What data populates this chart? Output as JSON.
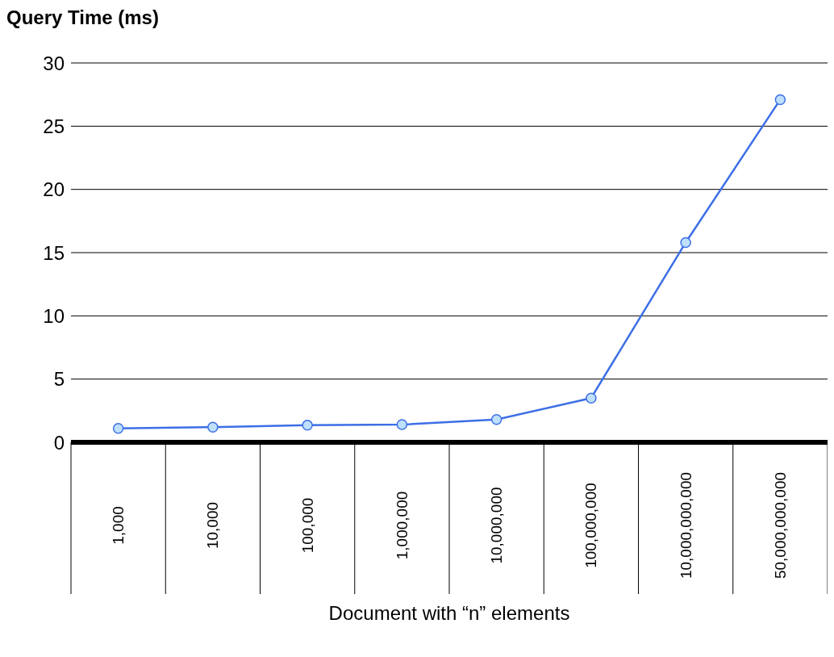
{
  "chart_data": {
    "type": "line",
    "ylabel": "Query Time (ms)",
    "xlabel": "Document with “n” elements",
    "categories": [
      "1,000",
      "10,000",
      "100,000",
      "1,000,000",
      "10,000,000",
      "100,000,000",
      "10,000,000,000",
      "50,000,000,000"
    ],
    "series": [
      {
        "color": "#3c6fe6",
        "values": [
          1.1,
          1.2,
          1.35,
          1.4,
          1.8,
          3.5,
          15.8,
          27.1
        ]
      }
    ],
    "ylim": [
      0,
      30
    ],
    "yticks": [
      0,
      5,
      10,
      15,
      20,
      25,
      30
    ],
    "grid": "y",
    "marker": "circle",
    "line_style": "solid"
  }
}
